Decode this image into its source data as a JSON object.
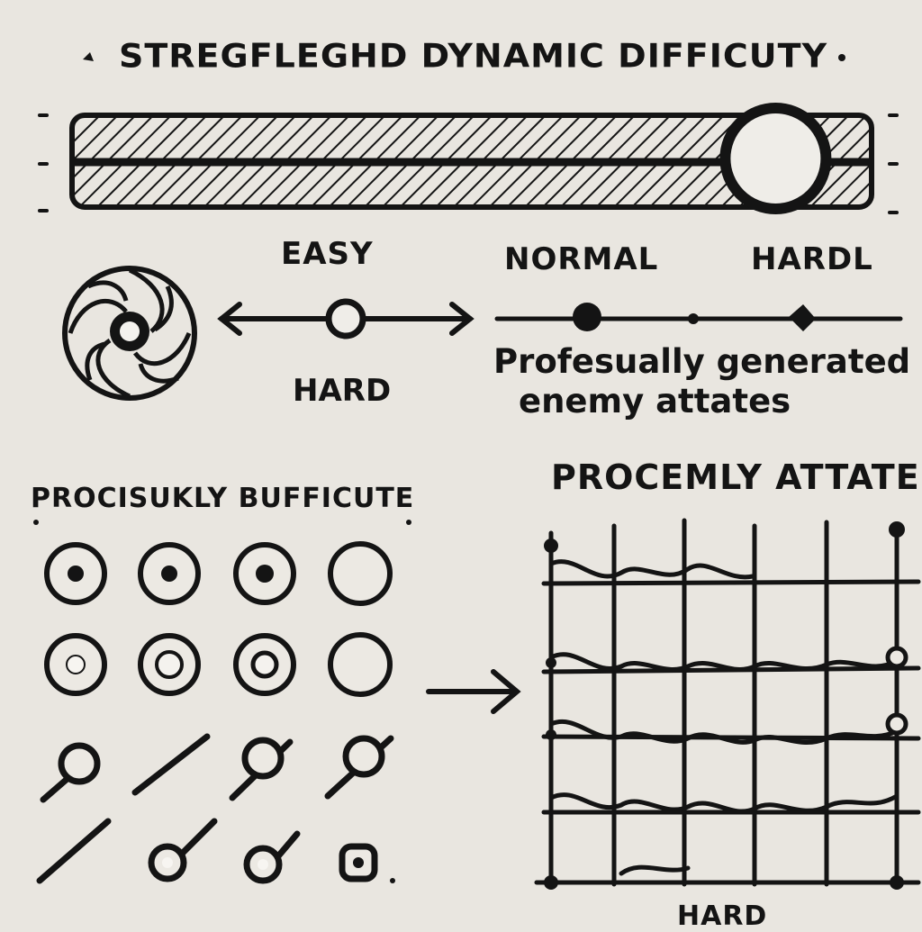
{
  "header": {
    "title": "STREGFLEGHD DYNAMIC DIFFICUTY"
  },
  "difficulty_slider": {
    "value": 0.88
  },
  "levels": {
    "easy": "EASY",
    "normal": "NORMAL",
    "hard": "HARDL"
  },
  "middle": {
    "hard_label": "HARD",
    "note_line1": "Profesually generated",
    "note_line2": "enemy attates"
  },
  "left_panel": {
    "title": "PROCISUKLY BUFFICUTE"
  },
  "right_panel": {
    "title": "PROCEMLY ATTATES",
    "bottom_label": "HARD"
  },
  "colors": {
    "ink": "#141414",
    "paper": "#e9e6e0"
  }
}
